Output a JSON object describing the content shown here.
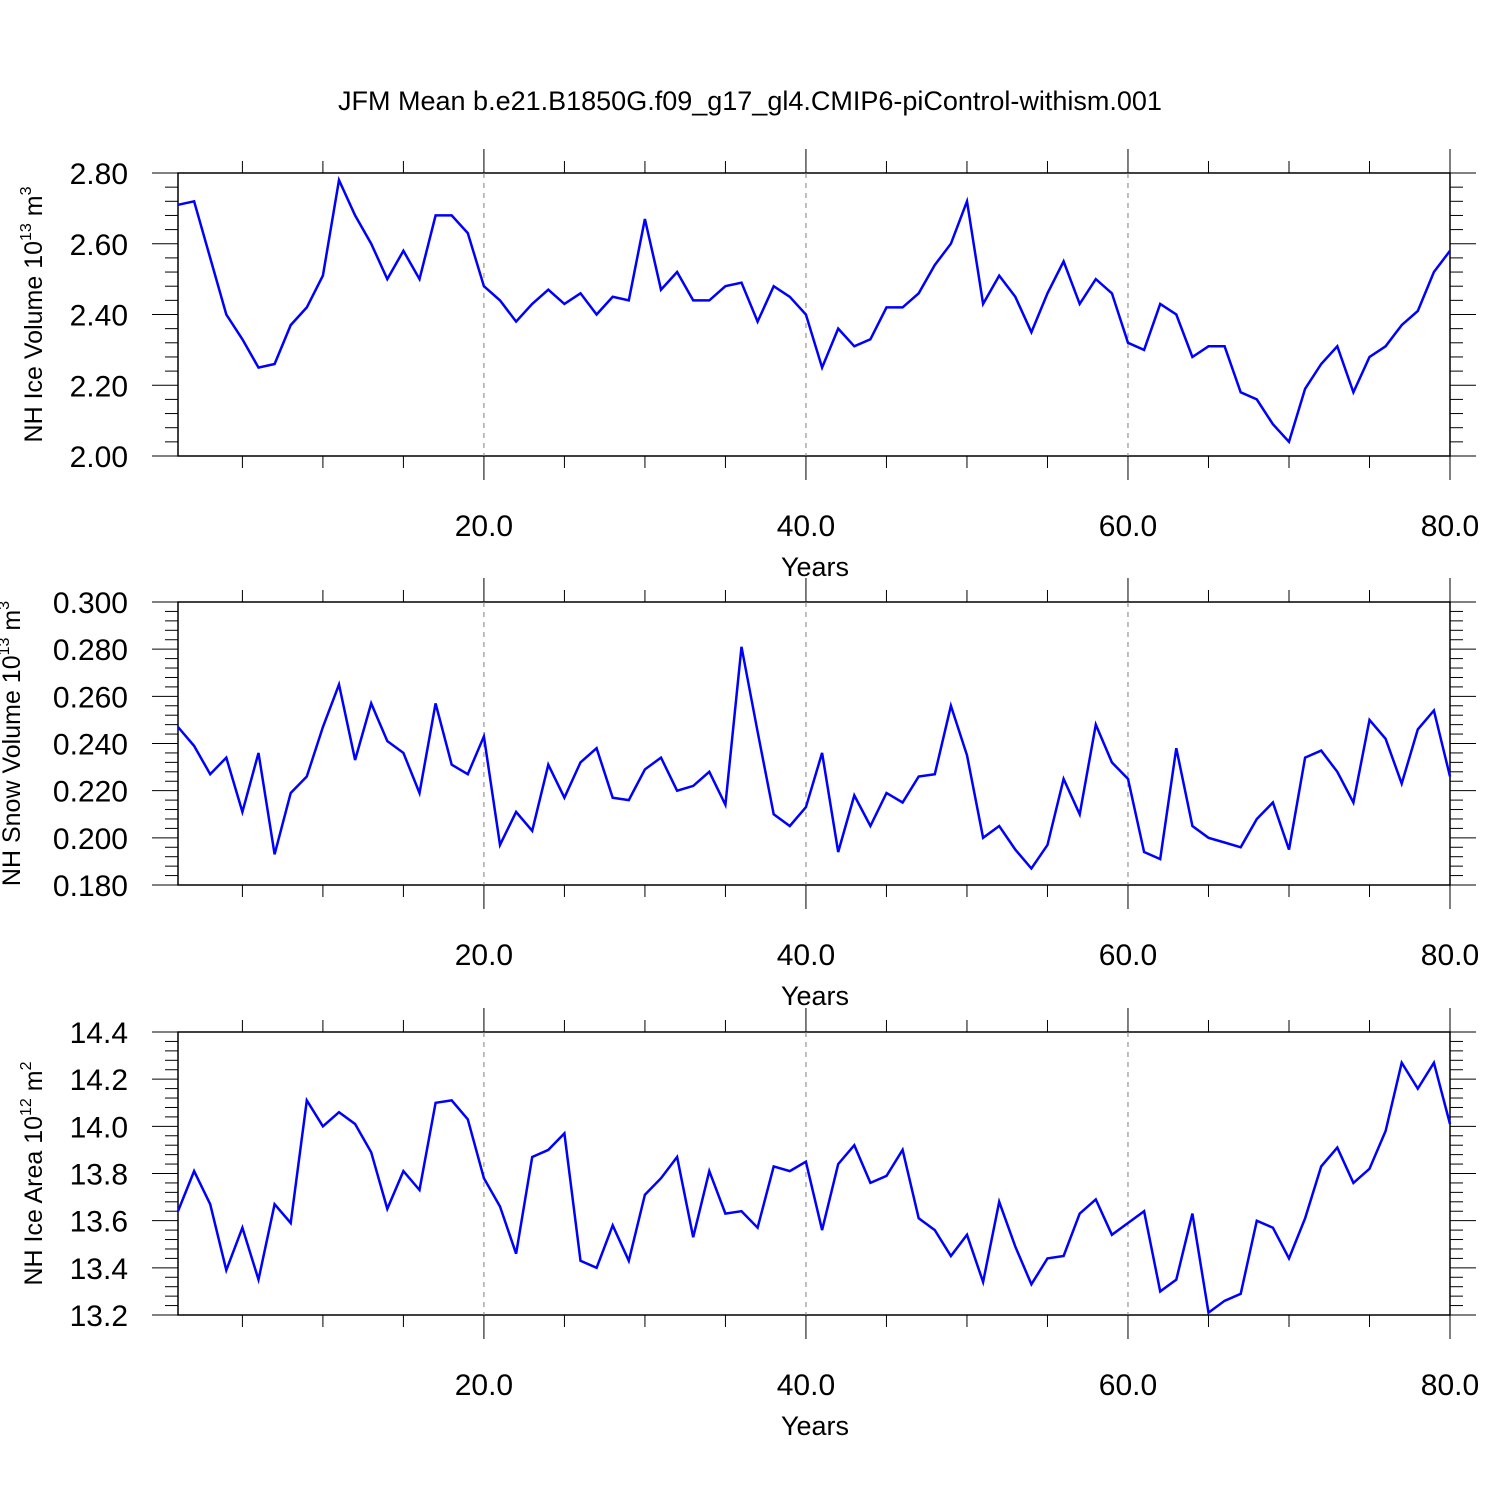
{
  "title": "JFM Mean b.e21.B1850G.f09_g17_gl4.CMIP6-piControl-withism.001",
  "colors": {
    "line": "#0000ff",
    "axis": "#000000",
    "grid": "#808080"
  },
  "chart_data": [
    {
      "type": "line",
      "xlabel": "Years",
      "ylabel": "NH Ice Volume 10",
      "ylabel_exp": "13",
      "ylabel_unit": "m",
      "ylabel_unit_exp": "3",
      "xlim": [
        1,
        80
      ],
      "ylim": [
        2.0,
        2.8
      ],
      "xticks": [
        20,
        40,
        60,
        80
      ],
      "xtick_labels": [
        "20.0",
        "40.0",
        "60.0",
        "80.0"
      ],
      "yticks": [
        2.0,
        2.2,
        2.4,
        2.6,
        2.8
      ],
      "ytick_labels": [
        "2.00",
        "2.20",
        "2.40",
        "2.60",
        "2.80"
      ],
      "grid": "vertical dashed at 20, 40, 60",
      "series": [
        {
          "x": [
            1,
            2,
            3,
            4,
            5,
            6,
            7,
            8,
            9,
            10,
            11,
            12,
            13,
            14,
            15,
            16,
            17,
            18,
            19,
            20,
            21,
            22,
            23,
            24,
            25,
            26,
            27,
            28,
            29,
            30,
            31,
            32,
            33,
            34,
            35,
            36,
            37,
            38,
            39,
            40,
            41,
            42,
            43,
            44,
            45,
            46,
            47,
            48,
            49,
            50,
            51,
            52,
            53,
            54,
            55,
            56,
            57,
            58,
            59,
            60,
            61,
            62,
            63,
            64,
            65,
            66,
            67,
            68,
            69,
            70,
            71,
            72,
            73,
            74,
            75,
            76,
            77,
            78,
            79,
            80
          ],
          "values": [
            2.71,
            2.72,
            2.56,
            2.4,
            2.33,
            2.25,
            2.26,
            2.37,
            2.42,
            2.51,
            2.78,
            2.68,
            2.6,
            2.5,
            2.58,
            2.5,
            2.68,
            2.68,
            2.63,
            2.48,
            2.44,
            2.38,
            2.43,
            2.47,
            2.43,
            2.46,
            2.4,
            2.45,
            2.44,
            2.67,
            2.47,
            2.52,
            2.44,
            2.44,
            2.48,
            2.49,
            2.38,
            2.48,
            2.45,
            2.4,
            2.25,
            2.36,
            2.31,
            2.33,
            2.42,
            2.42,
            2.46,
            2.54,
            2.6,
            2.72,
            2.43,
            2.51,
            2.45,
            2.35,
            2.46,
            2.55,
            2.43,
            2.5,
            2.46,
            2.32,
            2.3,
            2.43,
            2.4,
            2.28,
            2.31,
            2.31,
            2.18,
            2.16,
            2.09,
            2.04,
            2.19,
            2.26,
            2.31,
            2.18,
            2.28,
            2.31,
            2.37,
            2.41,
            2.52,
            2.58
          ]
        }
      ]
    },
    {
      "type": "line",
      "xlabel": "Years",
      "ylabel": "NH Snow Volume 10",
      "ylabel_exp": "13",
      "ylabel_unit": "m",
      "ylabel_unit_exp": "3",
      "xlim": [
        1,
        80
      ],
      "ylim": [
        0.18,
        0.3
      ],
      "xticks": [
        20,
        40,
        60,
        80
      ],
      "xtick_labels": [
        "20.0",
        "40.0",
        "60.0",
        "80.0"
      ],
      "yticks": [
        0.18,
        0.2,
        0.22,
        0.24,
        0.26,
        0.28,
        0.3
      ],
      "ytick_labels": [
        "0.180",
        "0.200",
        "0.220",
        "0.240",
        "0.260",
        "0.280",
        "0.300"
      ],
      "grid": "vertical dashed at 20, 40, 60",
      "series": [
        {
          "x": [
            1,
            2,
            3,
            4,
            5,
            6,
            7,
            8,
            9,
            10,
            11,
            12,
            13,
            14,
            15,
            16,
            17,
            18,
            19,
            20,
            21,
            22,
            23,
            24,
            25,
            26,
            27,
            28,
            29,
            30,
            31,
            32,
            33,
            34,
            35,
            36,
            37,
            38,
            39,
            40,
            41,
            42,
            43,
            44,
            45,
            46,
            47,
            48,
            49,
            50,
            51,
            52,
            53,
            54,
            55,
            56,
            57,
            58,
            59,
            60,
            61,
            62,
            63,
            64,
            65,
            66,
            67,
            68,
            69,
            70,
            71,
            72,
            73,
            74,
            75,
            76,
            77,
            78,
            79,
            80
          ],
          "values": [
            0.247,
            0.239,
            0.227,
            0.234,
            0.211,
            0.236,
            0.193,
            0.219,
            0.226,
            0.247,
            0.265,
            0.233,
            0.257,
            0.241,
            0.236,
            0.219,
            0.257,
            0.231,
            0.227,
            0.243,
            0.197,
            0.211,
            0.203,
            0.231,
            0.217,
            0.232,
            0.238,
            0.217,
            0.216,
            0.229,
            0.234,
            0.22,
            0.222,
            0.228,
            0.214,
            0.281,
            0.245,
            0.21,
            0.205,
            0.213,
            0.236,
            0.194,
            0.218,
            0.205,
            0.219,
            0.215,
            0.226,
            0.227,
            0.256,
            0.235,
            0.2,
            0.205,
            0.195,
            0.187,
            0.197,
            0.225,
            0.21,
            0.248,
            0.232,
            0.225,
            0.194,
            0.191,
            0.238,
            0.205,
            0.2,
            0.198,
            0.196,
            0.208,
            0.215,
            0.195,
            0.234,
            0.237,
            0.228,
            0.215,
            0.25,
            0.242,
            0.223,
            0.246,
            0.254,
            0.226
          ]
        }
      ]
    },
    {
      "type": "line",
      "xlabel": "Years",
      "ylabel": "NH Ice Area 10",
      "ylabel_exp": "12",
      "ylabel_unit": "m",
      "ylabel_unit_exp": "2",
      "xlim": [
        1,
        80
      ],
      "ylim": [
        13.2,
        14.4
      ],
      "xticks": [
        20,
        40,
        60,
        80
      ],
      "xtick_labels": [
        "20.0",
        "40.0",
        "60.0",
        "80.0"
      ],
      "yticks": [
        13.2,
        13.4,
        13.6,
        13.8,
        14.0,
        14.2,
        14.4
      ],
      "ytick_labels": [
        "13.2",
        "13.4",
        "13.6",
        "13.8",
        "14.0",
        "14.2",
        "14.4"
      ],
      "grid": "vertical dashed at 20, 40, 60",
      "series": [
        {
          "x": [
            1,
            2,
            3,
            4,
            5,
            6,
            7,
            8,
            9,
            10,
            11,
            12,
            13,
            14,
            15,
            16,
            17,
            18,
            19,
            20,
            21,
            22,
            23,
            24,
            25,
            26,
            27,
            28,
            29,
            30,
            31,
            32,
            33,
            34,
            35,
            36,
            37,
            38,
            39,
            40,
            41,
            42,
            43,
            44,
            45,
            46,
            47,
            48,
            49,
            50,
            51,
            52,
            53,
            54,
            55,
            56,
            57,
            58,
            59,
            60,
            61,
            62,
            63,
            64,
            65,
            66,
            67,
            68,
            69,
            70,
            71,
            72,
            73,
            74,
            75,
            76,
            77,
            78,
            79,
            80
          ],
          "values": [
            13.64,
            13.81,
            13.67,
            13.39,
            13.57,
            13.35,
            13.67,
            13.59,
            14.11,
            14.0,
            14.06,
            14.01,
            13.89,
            13.65,
            13.81,
            13.73,
            14.1,
            14.11,
            14.03,
            13.78,
            13.66,
            13.46,
            13.87,
            13.9,
            13.97,
            13.43,
            13.4,
            13.58,
            13.43,
            13.71,
            13.78,
            13.87,
            13.53,
            13.81,
            13.63,
            13.64,
            13.57,
            13.83,
            13.81,
            13.85,
            13.56,
            13.84,
            13.92,
            13.76,
            13.79,
            13.9,
            13.61,
            13.56,
            13.45,
            13.54,
            13.34,
            13.68,
            13.49,
            13.33,
            13.44,
            13.45,
            13.63,
            13.69,
            13.54,
            13.59,
            13.64,
            13.3,
            13.35,
            13.63,
            13.21,
            13.26,
            13.29,
            13.6,
            13.57,
            13.44,
            13.61,
            13.83,
            13.91,
            13.76,
            13.82,
            13.98,
            14.27,
            14.16,
            14.27,
            14.01
          ]
        }
      ]
    }
  ]
}
